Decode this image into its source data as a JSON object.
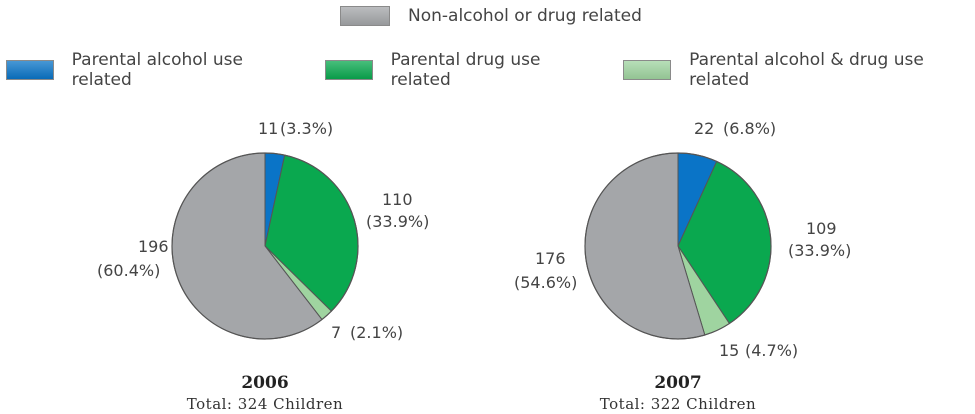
{
  "legend": {
    "items": [
      {
        "key": "non",
        "label": "Non-alcohol or drug related",
        "color": "#a4a6a9"
      },
      {
        "key": "alc",
        "label": "Parental alcohol use related",
        "color": "#0a74c7"
      },
      {
        "key": "drug",
        "label": "Parental drug use related",
        "color": "#0aa84f"
      },
      {
        "key": "both",
        "label": "Parental alcohol & drug use related",
        "color": "#9fd4a0"
      }
    ]
  },
  "chart_data": [
    {
      "type": "pie",
      "title": "2006",
      "subtitle": "Total: 324 Children",
      "categories": [
        "Parental alcohol use related",
        "Parental drug use related",
        "Parental alcohol & drug use related",
        "Non-alcohol or drug related"
      ],
      "values": [
        11,
        110,
        7,
        196
      ],
      "percents": [
        3.3,
        33.9,
        2.1,
        60.4
      ],
      "labels": [
        {
          "value": "11",
          "percent": "(3.3%)"
        },
        {
          "value": "110",
          "percent": "(33.9%)"
        },
        {
          "value": "7",
          "percent": "(2.1%)"
        },
        {
          "value": "196",
          "percent": "(60.4%)"
        }
      ]
    },
    {
      "type": "pie",
      "title": "2007",
      "subtitle": "Total: 322 Children",
      "categories": [
        "Parental alcohol use related",
        "Parental drug use related",
        "Parental alcohol & drug use related",
        "Non-alcohol or drug related"
      ],
      "values": [
        22,
        109,
        15,
        176
      ],
      "percents": [
        6.8,
        33.9,
        4.7,
        54.6
      ],
      "labels": [
        {
          "value": "22",
          "percent": "(6.8%)"
        },
        {
          "value": "109",
          "percent": "(33.9%)"
        },
        {
          "value": "15",
          "percent": "(4.7%)"
        },
        {
          "value": "176",
          "percent": "(54.6%)"
        }
      ]
    }
  ]
}
